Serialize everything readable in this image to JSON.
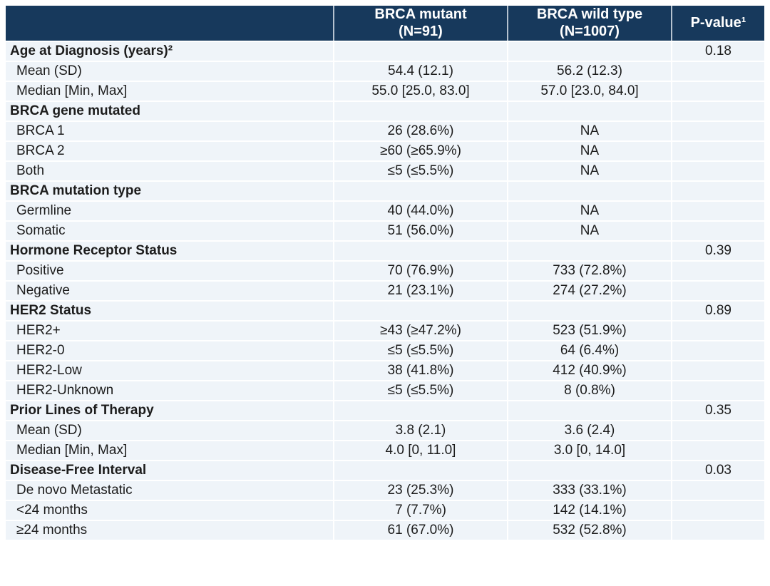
{
  "table": {
    "header": [
      "",
      "BRCA mutant\n(N=91)",
      "BRCA wild type\n(N=1007)",
      "P-value¹"
    ],
    "rows": [
      {
        "type": "section",
        "cells": [
          "Age at Diagnosis (years)²",
          "",
          "",
          "0.18"
        ]
      },
      {
        "type": "sub",
        "cells": [
          "Mean (SD)",
          "54.4 (12.1)",
          "56.2 (12.3)",
          ""
        ]
      },
      {
        "type": "sub",
        "cells": [
          "Median [Min, Max]",
          "55.0 [25.0, 83.0]",
          "57.0 [23.0, 84.0]",
          ""
        ]
      },
      {
        "type": "section",
        "cells": [
          "BRCA gene mutated",
          "",
          "",
          ""
        ]
      },
      {
        "type": "sub",
        "cells": [
          "BRCA 1",
          "26 (28.6%)",
          "NA",
          ""
        ]
      },
      {
        "type": "sub",
        "cells": [
          "BRCA 2",
          "≥60 (≥65.9%)",
          "NA",
          ""
        ]
      },
      {
        "type": "sub",
        "cells": [
          "Both",
          "≤5 (≤5.5%)",
          "NA",
          ""
        ]
      },
      {
        "type": "section",
        "cells": [
          "BRCA mutation type",
          "",
          "",
          ""
        ]
      },
      {
        "type": "sub",
        "cells": [
          "Germline",
          "40 (44.0%)",
          "NA",
          ""
        ]
      },
      {
        "type": "sub",
        "cells": [
          "Somatic",
          "51 (56.0%)",
          "NA",
          ""
        ]
      },
      {
        "type": "section",
        "cells": [
          "Hormone Receptor Status",
          "",
          "",
          "0.39"
        ]
      },
      {
        "type": "sub",
        "cells": [
          "Positive",
          "70 (76.9%)",
          "733 (72.8%)",
          ""
        ]
      },
      {
        "type": "sub",
        "cells": [
          "Negative",
          "21 (23.1%)",
          "274 (27.2%)",
          ""
        ]
      },
      {
        "type": "section",
        "cells": [
          "HER2 Status",
          "",
          "",
          "0.89"
        ]
      },
      {
        "type": "sub",
        "cells": [
          "HER2+",
          "≥43 (≥47.2%)",
          "523 (51.9%)",
          ""
        ]
      },
      {
        "type": "sub",
        "cells": [
          "HER2-0",
          "≤5 (≤5.5%)",
          "64 (6.4%)",
          ""
        ]
      },
      {
        "type": "sub",
        "cells": [
          "HER2-Low",
          "38 (41.8%)",
          "412 (40.9%)",
          ""
        ]
      },
      {
        "type": "sub",
        "cells": [
          "HER2-Unknown",
          "≤5 (≤5.5%)",
          "8 (0.8%)",
          ""
        ]
      },
      {
        "type": "section",
        "cells": [
          "Prior Lines of Therapy",
          "",
          "",
          "0.35"
        ]
      },
      {
        "type": "sub",
        "cells": [
          "Mean (SD)",
          "3.8 (2.1)",
          "3.6 (2.4)",
          ""
        ]
      },
      {
        "type": "sub",
        "cells": [
          "Median [Min, Max]",
          "4.0 [0, 11.0]",
          "3.0 [0, 14.0]",
          ""
        ]
      },
      {
        "type": "section",
        "cells": [
          "Disease-Free Interval",
          "",
          "",
          "0.03"
        ]
      },
      {
        "type": "sub",
        "cells": [
          "De novo Metastatic",
          "23 (25.3%)",
          "333 (33.1%)",
          ""
        ]
      },
      {
        "type": "sub",
        "cells": [
          "<24 months",
          "7 (7.7%)",
          "142 (14.1%)",
          ""
        ]
      },
      {
        "type": "sub",
        "cells": [
          "≥24 months",
          "61 (67.0%)",
          "532 (52.8%)",
          ""
        ]
      }
    ],
    "colors": {
      "header_bg": "#17395c",
      "header_text": "#ffffff",
      "row_bg": "#eff4f9",
      "separator": "#ffffff",
      "body_text": "#1c1c1c"
    }
  }
}
